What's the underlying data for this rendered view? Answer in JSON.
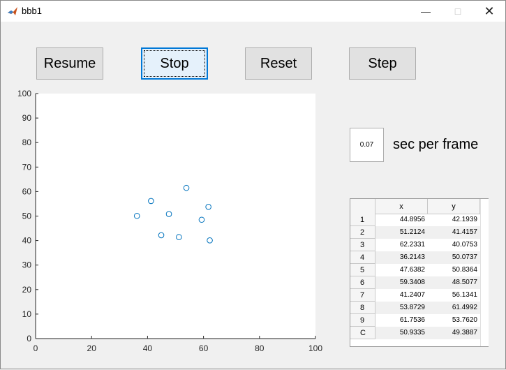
{
  "window": {
    "title": "bbb1"
  },
  "controls": {
    "resume_label": "Resume",
    "stop_label": "Stop",
    "reset_label": "Reset",
    "step_label": "Step"
  },
  "frame_rate": {
    "value": "0.07",
    "label": "sec per frame"
  },
  "table": {
    "columns": [
      "x",
      "y"
    ],
    "rows": [
      {
        "label": "1",
        "x": "44.8956",
        "y": "42.1939"
      },
      {
        "label": "2",
        "x": "51.2124",
        "y": "41.4157"
      },
      {
        "label": "3",
        "x": "62.2331",
        "y": "40.0753"
      },
      {
        "label": "4",
        "x": "36.2143",
        "y": "50.0737"
      },
      {
        "label": "5",
        "x": "47.6382",
        "y": "50.8364"
      },
      {
        "label": "6",
        "x": "59.3408",
        "y": "48.5077"
      },
      {
        "label": "7",
        "x": "41.2407",
        "y": "56.1341"
      },
      {
        "label": "8",
        "x": "53.8729",
        "y": "61.4992"
      },
      {
        "label": "9",
        "x": "61.7536",
        "y": "53.7620"
      },
      {
        "label": "C",
        "x": "50.9335",
        "y": "49.3887"
      }
    ]
  },
  "chart_data": {
    "type": "scatter",
    "title": "",
    "xlabel": "",
    "ylabel": "",
    "xlim": [
      0,
      100
    ],
    "ylim": [
      0,
      100
    ],
    "xticks": [
      0,
      20,
      40,
      60,
      80,
      100
    ],
    "yticks": [
      0,
      10,
      20,
      30,
      40,
      50,
      60,
      70,
      80,
      90,
      100
    ],
    "marker_color": "#0072bd",
    "grid": false,
    "points": [
      {
        "x": 44.8956,
        "y": 42.1939
      },
      {
        "x": 51.2124,
        "y": 41.4157
      },
      {
        "x": 62.2331,
        "y": 40.0753
      },
      {
        "x": 36.2143,
        "y": 50.0737
      },
      {
        "x": 47.6382,
        "y": 50.8364
      },
      {
        "x": 59.3408,
        "y": 48.5077
      },
      {
        "x": 41.2407,
        "y": 56.1341
      },
      {
        "x": 53.8729,
        "y": 61.4992
      },
      {
        "x": 61.7536,
        "y": 53.762
      }
    ]
  }
}
